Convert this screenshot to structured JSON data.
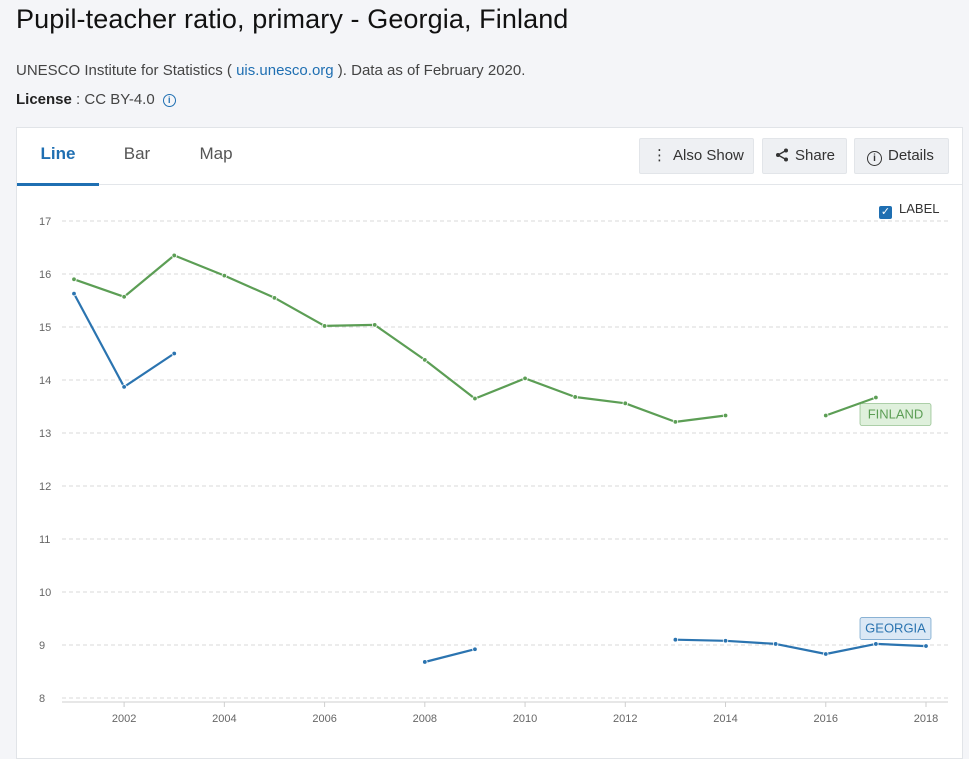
{
  "page": {
    "title": "Pupil-teacher ratio, primary - Georgia, Finland",
    "source_prefix": "UNESCO Institute for Statistics ( ",
    "source_link": "uis.unesco.org",
    "source_suffix": " ). Data as of February 2020.",
    "license_label": "License",
    "license_value": " : CC BY-4.0"
  },
  "tabs": [
    {
      "label": "Line",
      "active": true
    },
    {
      "label": "Bar",
      "active": false
    },
    {
      "label": "Map",
      "active": false
    }
  ],
  "toolbar": {
    "also_show": "Also Show",
    "share": "Share",
    "details": "Details"
  },
  "label_toggle": {
    "label": "LABEL",
    "checked": true
  },
  "chart_data": {
    "type": "line",
    "title": "",
    "xlabel": "",
    "ylabel": "",
    "xlim": [
      2001,
      2018
    ],
    "ylim": [
      8,
      17
    ],
    "x_ticks": [
      2002,
      2004,
      2006,
      2008,
      2010,
      2012,
      2014,
      2016,
      2018
    ],
    "y_ticks": [
      8,
      9,
      10,
      11,
      12,
      13,
      14,
      15,
      16,
      17
    ],
    "grid": true,
    "series": [
      {
        "name": "FINLAND",
        "color": "#5c9e55",
        "label_bg": "#dff0dc",
        "points": [
          [
            2001,
            15.9
          ],
          [
            2002,
            15.57
          ],
          [
            2003,
            16.35
          ],
          [
            2004,
            15.97
          ],
          [
            2005,
            15.55
          ],
          [
            2006,
            15.02
          ],
          [
            2007,
            15.04
          ],
          [
            2008,
            14.38
          ],
          [
            2009,
            13.65
          ],
          [
            2010,
            14.03
          ],
          [
            2011,
            13.68
          ],
          [
            2012,
            13.56
          ],
          [
            2013,
            13.21
          ],
          [
            2014,
            13.33
          ],
          [
            2015,
            null
          ],
          [
            2016,
            13.33
          ],
          [
            2017,
            13.67
          ]
        ]
      },
      {
        "name": "GEORGIA",
        "color": "#2b74b0",
        "label_bg": "#dbe8f5",
        "points": [
          [
            2001,
            15.63
          ],
          [
            2002,
            13.87
          ],
          [
            2003,
            14.5
          ],
          [
            2004,
            null
          ],
          [
            2005,
            null
          ],
          [
            2006,
            null
          ],
          [
            2007,
            null
          ],
          [
            2008,
            8.68
          ],
          [
            2009,
            8.92
          ],
          [
            2010,
            null
          ],
          [
            2011,
            null
          ],
          [
            2012,
            null
          ],
          [
            2013,
            9.1
          ],
          [
            2014,
            9.08
          ],
          [
            2015,
            9.02
          ],
          [
            2016,
            8.83
          ],
          [
            2017,
            9.02
          ],
          [
            2018,
            8.98
          ]
        ]
      }
    ]
  }
}
